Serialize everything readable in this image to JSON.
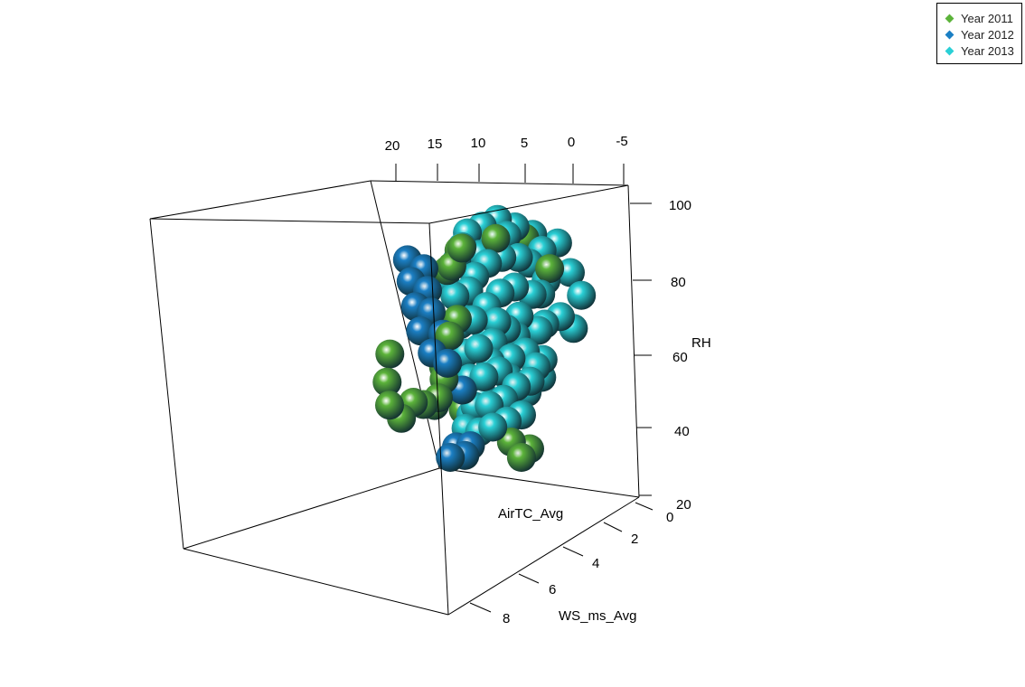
{
  "chart_data": {
    "type": "scatter",
    "dimensions": 3,
    "axes": {
      "x": {
        "label": "AirTC_Avg",
        "ticks": [
          "20",
          "15",
          "10",
          "5",
          "0",
          "-5"
        ]
      },
      "y": {
        "label": "WS_ms_Avg",
        "ticks": [
          "0",
          "2",
          "4",
          "6",
          "8"
        ]
      },
      "z": {
        "label": "RH",
        "ticks": [
          "20",
          "40",
          "60",
          "80",
          "100"
        ]
      }
    },
    "legend": {
      "placement": "top-right",
      "entries": [
        {
          "name": "Year 2011",
          "color": "#5cb33a"
        },
        {
          "name": "Year 2012",
          "color": "#1b7fc4"
        },
        {
          "name": "Year 2013",
          "color": "#2ad0d6"
        }
      ]
    },
    "series": [
      {
        "name": "Year 2011",
        "color": "#5cb33a",
        "points": [
          {
            "x": 21,
            "y": 6.5,
            "z": 62
          },
          {
            "x": 22,
            "y": 6.8,
            "z": 54
          },
          {
            "x": 22,
            "y": 7.2,
            "z": 48
          },
          {
            "x": 21,
            "y": 7.0,
            "z": 44
          },
          {
            "x": 19,
            "y": 6.8,
            "z": 49
          },
          {
            "x": 18,
            "y": 6.5,
            "z": 48
          },
          {
            "x": 17,
            "y": 6.0,
            "z": 47
          },
          {
            "x": 16,
            "y": 6.2,
            "z": 50
          },
          {
            "x": 15,
            "y": 5.8,
            "z": 55
          },
          {
            "x": 15,
            "y": 5.5,
            "z": 58
          },
          {
            "x": 13,
            "y": 5.0,
            "z": 62
          },
          {
            "x": 12,
            "y": 4.8,
            "z": 86
          },
          {
            "x": 11,
            "y": 5.0,
            "z": 88
          },
          {
            "x": 10,
            "y": 4.5,
            "z": 92
          },
          {
            "x": 9,
            "y": 5.0,
            "z": 94
          },
          {
            "x": 8,
            "y": 5.5,
            "z": 38
          },
          {
            "x": 6,
            "y": 5.2,
            "z": 36
          },
          {
            "x": 7,
            "y": 5.6,
            "z": 34
          },
          {
            "x": 5,
            "y": 4.0,
            "z": 96
          },
          {
            "x": 2,
            "y": 3.0,
            "z": 95
          },
          {
            "x": -1,
            "y": 3.5,
            "z": 88
          },
          {
            "x": 14,
            "y": 5.2,
            "z": 45
          },
          {
            "x": 13,
            "y": 5.6,
            "z": 68
          },
          {
            "x": 12,
            "y": 5.0,
            "z": 72
          }
        ]
      },
      {
        "name": "Year 2012",
        "color": "#1b7fc4",
        "points": [
          {
            "x": 17,
            "y": 5.0,
            "z": 88
          },
          {
            "x": 17,
            "y": 5.2,
            "z": 82
          },
          {
            "x": 17,
            "y": 5.4,
            "z": 75
          },
          {
            "x": 17,
            "y": 5.5,
            "z": 68
          },
          {
            "x": 16,
            "y": 5.6,
            "z": 62
          },
          {
            "x": 15,
            "y": 5.0,
            "z": 86
          },
          {
            "x": 15,
            "y": 5.2,
            "z": 80
          },
          {
            "x": 15,
            "y": 5.4,
            "z": 74
          },
          {
            "x": 14,
            "y": 5.5,
            "z": 68
          },
          {
            "x": 14,
            "y": 5.8,
            "z": 60
          },
          {
            "x": 13,
            "y": 5.6,
            "z": 52
          },
          {
            "x": 15,
            "y": 6.3,
            "z": 36
          },
          {
            "x": 14,
            "y": 6.4,
            "z": 34
          },
          {
            "x": 13,
            "y": 6.3,
            "z": 37
          },
          {
            "x": 16,
            "y": 6.5,
            "z": 33
          }
        ]
      },
      {
        "name": "Year 2013",
        "color": "#2ad0d6",
        "points": [
          {
            "x": 13,
            "y": 4.5,
            "z": 82
          },
          {
            "x": 12,
            "y": 4.6,
            "z": 78
          },
          {
            "x": 12,
            "y": 4.8,
            "z": 70
          },
          {
            "x": 12,
            "y": 5.0,
            "z": 62
          },
          {
            "x": 12,
            "y": 5.2,
            "z": 55
          },
          {
            "x": 12,
            "y": 5.4,
            "z": 47
          },
          {
            "x": 12,
            "y": 5.6,
            "z": 40
          },
          {
            "x": 11,
            "y": 4.2,
            "z": 88
          },
          {
            "x": 10,
            "y": 4.0,
            "z": 92
          },
          {
            "x": 10,
            "y": 4.5,
            "z": 80
          },
          {
            "x": 10,
            "y": 4.8,
            "z": 72
          },
          {
            "x": 10,
            "y": 5.0,
            "z": 64
          },
          {
            "x": 10,
            "y": 5.2,
            "z": 56
          },
          {
            "x": 10,
            "y": 5.4,
            "z": 48
          },
          {
            "x": 10,
            "y": 5.6,
            "z": 42
          },
          {
            "x": 9,
            "y": 3.8,
            "z": 96
          },
          {
            "x": 9,
            "y": 4.2,
            "z": 84
          },
          {
            "x": 8,
            "y": 4.5,
            "z": 76
          },
          {
            "x": 8,
            "y": 4.8,
            "z": 66
          },
          {
            "x": 8,
            "y": 5.0,
            "z": 58
          },
          {
            "x": 8,
            "y": 5.2,
            "z": 50
          },
          {
            "x": 8,
            "y": 5.4,
            "z": 44
          },
          {
            "x": 7,
            "y": 3.5,
            "z": 98
          },
          {
            "x": 7,
            "y": 4.0,
            "z": 88
          },
          {
            "x": 6,
            "y": 4.2,
            "z": 80
          },
          {
            "x": 6,
            "y": 4.5,
            "z": 70
          },
          {
            "x": 6,
            "y": 4.8,
            "z": 62
          },
          {
            "x": 6,
            "y": 5.0,
            "z": 54
          },
          {
            "x": 6,
            "y": 5.2,
            "z": 46
          },
          {
            "x": 5,
            "y": 3.2,
            "z": 100
          },
          {
            "x": 5,
            "y": 3.8,
            "z": 90
          },
          {
            "x": 4,
            "y": 4.0,
            "z": 82
          },
          {
            "x": 4,
            "y": 4.3,
            "z": 74
          },
          {
            "x": 4,
            "y": 4.6,
            "z": 64
          },
          {
            "x": 4,
            "y": 4.9,
            "z": 56
          },
          {
            "x": 3,
            "y": 3.0,
            "z": 98
          },
          {
            "x": 3,
            "y": 3.5,
            "z": 90
          },
          {
            "x": 2,
            "y": 3.8,
            "z": 80
          },
          {
            "x": 2,
            "y": 4.1,
            "z": 70
          },
          {
            "x": 2,
            "y": 4.4,
            "z": 62
          },
          {
            "x": 1,
            "y": 2.8,
            "z": 96
          },
          {
            "x": 0,
            "y": 3.0,
            "z": 92
          },
          {
            "x": 0,
            "y": 3.4,
            "z": 84
          },
          {
            "x": -1,
            "y": 3.6,
            "z": 74
          },
          {
            "x": -2,
            "y": 2.6,
            "z": 94
          },
          {
            "x": -3,
            "y": 2.8,
            "z": 86
          },
          {
            "x": -4,
            "y": 3.0,
            "z": 80
          },
          {
            "x": 3,
            "y": 4.6,
            "z": 60
          },
          {
            "x": 1,
            "y": 4.0,
            "z": 72
          },
          {
            "x": 5,
            "y": 4.4,
            "z": 68
          },
          {
            "x": 7,
            "y": 4.6,
            "z": 72
          },
          {
            "x": 9,
            "y": 4.8,
            "z": 60
          },
          {
            "x": 11,
            "y": 5.0,
            "z": 50
          },
          {
            "x": 13,
            "y": 5.3,
            "z": 44
          },
          {
            "x": 14,
            "y": 5.4,
            "z": 40
          },
          {
            "x": 11,
            "y": 4.4,
            "z": 76
          },
          {
            "x": 9,
            "y": 4.4,
            "z": 68
          },
          {
            "x": 7,
            "y": 4.8,
            "z": 56
          },
          {
            "x": 5,
            "y": 4.7,
            "z": 52
          },
          {
            "x": 3,
            "y": 4.2,
            "z": 56
          },
          {
            "x": 1,
            "y": 3.6,
            "z": 80
          },
          {
            "x": -2,
            "y": 3.2,
            "z": 70
          },
          {
            "x": 6,
            "y": 3.6,
            "z": 94
          },
          {
            "x": 8,
            "y": 3.8,
            "z": 90
          },
          {
            "x": 4,
            "y": 3.4,
            "z": 96
          },
          {
            "x": 2,
            "y": 3.2,
            "z": 88
          }
        ]
      }
    ]
  }
}
